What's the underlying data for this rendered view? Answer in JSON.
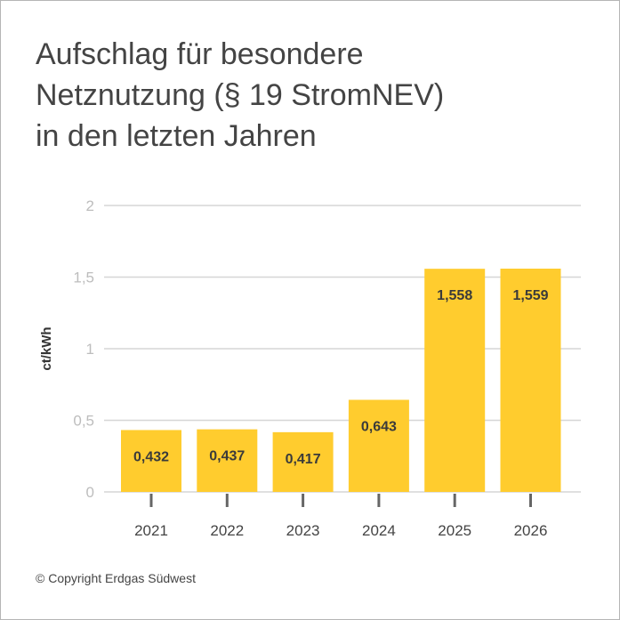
{
  "title_lines": [
    "Aufschlag für besondere",
    "Netznutzung (§ 19 StromNEV)",
    "in den letzten Jahren"
  ],
  "copyright": "© Copyright Erdgas Südwest",
  "colors": {
    "bar": "#ffcc2e",
    "grid": "#d6d6d6",
    "tick_label": "#bdbdbd",
    "text": "#444444"
  },
  "chart_data": {
    "type": "bar",
    "title": "Aufschlag für besondere Netznutzung (§ 19 StromNEV) in den letzten Jahren",
    "categories": [
      "2021",
      "2022",
      "2023",
      "2024",
      "2025",
      "2026"
    ],
    "values": [
      0.432,
      0.437,
      0.417,
      0.643,
      1.558,
      1.559
    ],
    "data_labels": [
      "0,432",
      "0,437",
      "0,417",
      "0,643",
      "1,558",
      "1,559"
    ],
    "xlabel": "",
    "ylabel": "ct/kWh",
    "ylim": [
      0,
      2
    ],
    "yticks": [
      0,
      0.5,
      1,
      1.5,
      2
    ],
    "ytick_labels": [
      "0",
      "0,5",
      "1",
      "1,5",
      "2"
    ],
    "grid": true,
    "legend": "none"
  }
}
